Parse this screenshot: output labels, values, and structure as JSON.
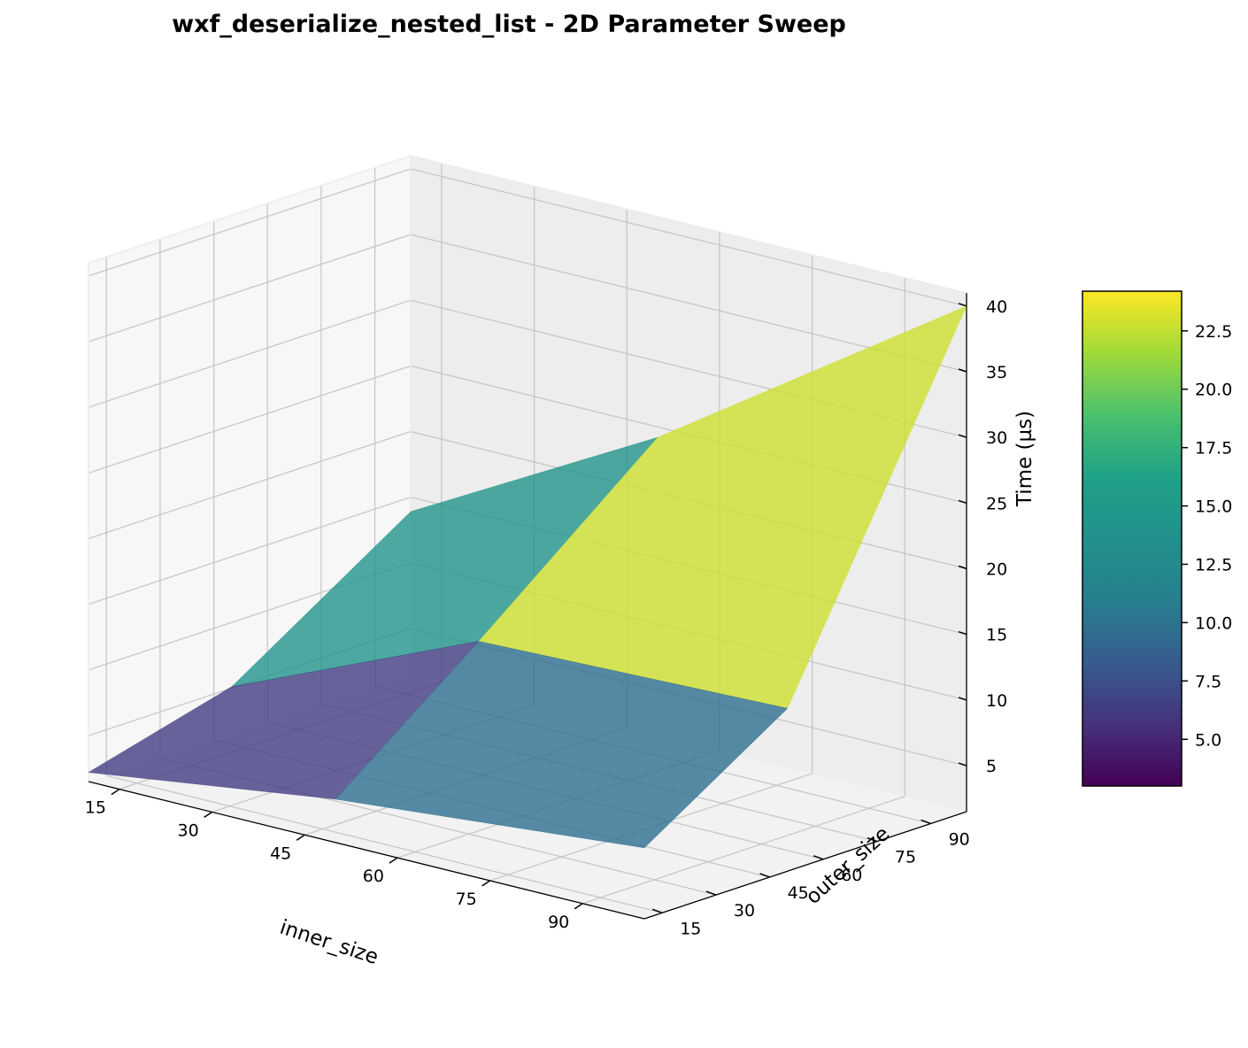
{
  "chart_data": {
    "type": "surface3d",
    "title": "wxf_deserialize_nested_list - 2D Parameter Sweep",
    "xlabel": "inner_size",
    "ylabel": "outer_size",
    "zlabel": "Time (µs)",
    "x": [
      10,
      50,
      100
    ],
    "y": [
      10,
      50,
      100
    ],
    "z": [
      [
        2.2,
        4.8,
        6.9
      ],
      [
        5.1,
        13.2,
        13.9
      ],
      [
        13.9,
        24.2,
        40.0
      ]
    ],
    "z_rows_are": "outer_size (y), columns are inner_size (x)",
    "xlim": [
      10,
      100
    ],
    "ylim": [
      10,
      100
    ],
    "zlim": [
      1.5,
      41
    ],
    "xticks": [
      "15",
      "30",
      "45",
      "60",
      "75",
      "90"
    ],
    "yticks": [
      "15",
      "30",
      "45",
      "60",
      "75",
      "90"
    ],
    "zticks": [
      "5",
      "10",
      "15",
      "20",
      "25",
      "30",
      "35",
      "40"
    ],
    "grid": true,
    "colormap": "viridis",
    "colorbar": {
      "range": [
        3.0,
        24.2
      ],
      "ticks": [
        "5.0",
        "7.5",
        "10.0",
        "12.5",
        "15.0",
        "17.5",
        "20.0",
        "22.5"
      ]
    }
  }
}
